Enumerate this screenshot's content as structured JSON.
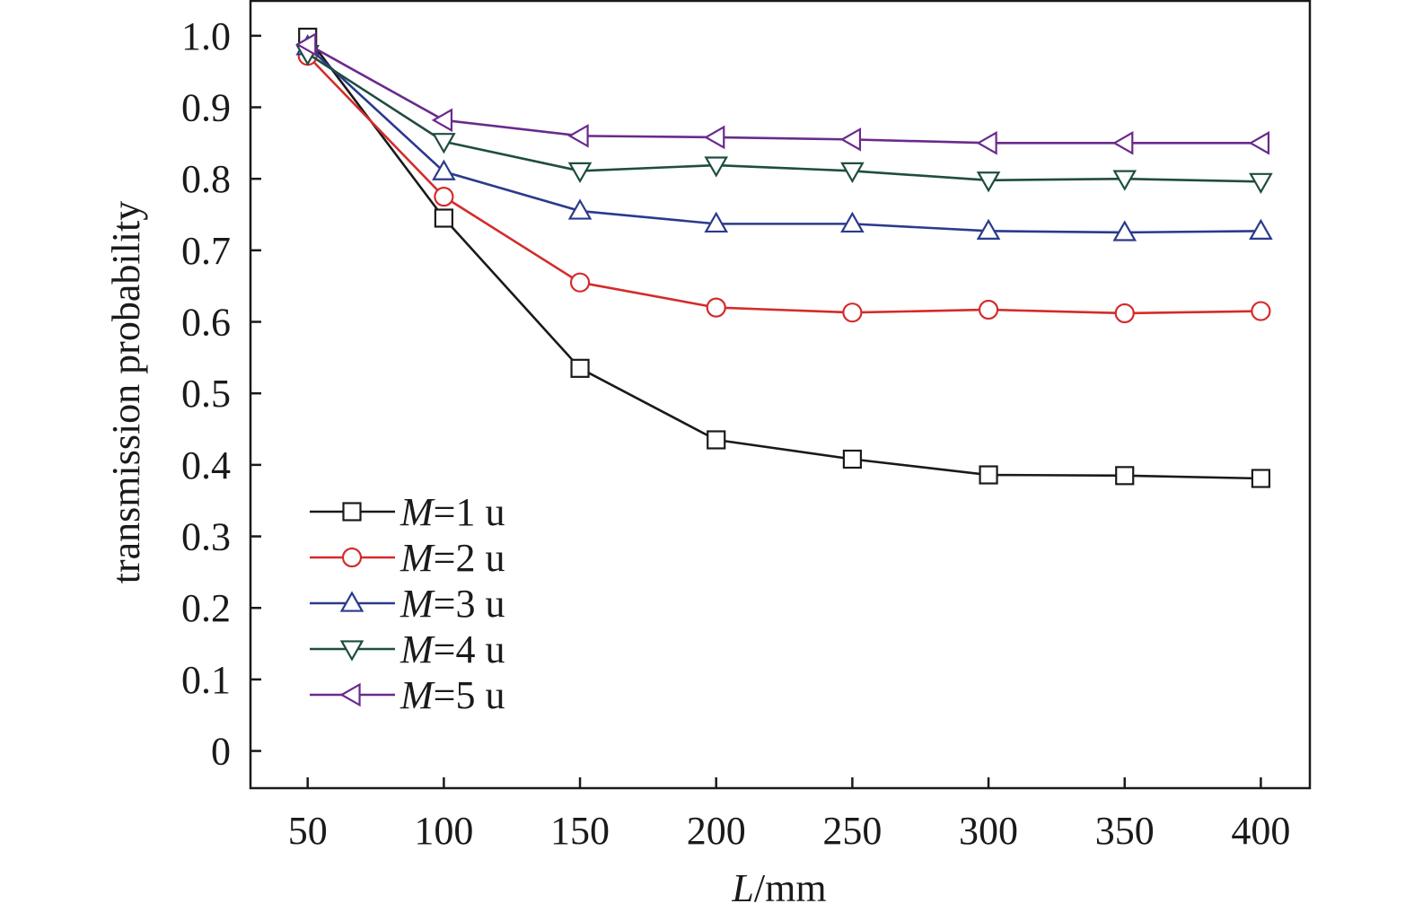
{
  "chart_data": {
    "type": "line",
    "title": "",
    "xlabel": {
      "var": "L",
      "unit": "/mm"
    },
    "ylabel": "transmission probability",
    "xlim": [
      29,
      418
    ],
    "ylim": [
      -0.052,
      1.05
    ],
    "x_ticks": [
      50,
      100,
      150,
      200,
      250,
      300,
      350,
      400
    ],
    "y_ticks": [
      0,
      0.1,
      0.2,
      0.3,
      0.4,
      0.5,
      0.6,
      0.7,
      0.8,
      0.9,
      1.0
    ],
    "y_tick_labels": [
      "0",
      "0.1",
      "0.2",
      "0.3",
      "0.4",
      "0.5",
      "0.6",
      "0.7",
      "0.8",
      "0.9",
      "1.0"
    ],
    "grid": false,
    "legend_placement": "lower-left",
    "x": [
      50,
      100,
      150,
      200,
      250,
      300,
      350,
      400
    ],
    "series": [
      {
        "name": "M=1 u",
        "var": "M",
        "rest": "=1 u",
        "color": "#1a1a1a",
        "marker": "square",
        "values": [
          0.998,
          0.745,
          0.535,
          0.435,
          0.408,
          0.386,
          0.385,
          0.381
        ]
      },
      {
        "name": "M=2 u",
        "var": "M",
        "rest": "=2 u",
        "color": "#d42b2b",
        "marker": "circle",
        "values": [
          0.972,
          0.775,
          0.655,
          0.62,
          0.613,
          0.617,
          0.612,
          0.615
        ]
      },
      {
        "name": "M=3 u",
        "var": "M",
        "rest": "=3 u",
        "color": "#2a3a8c",
        "marker": "triangle-up",
        "values": [
          0.985,
          0.81,
          0.755,
          0.737,
          0.737,
          0.727,
          0.725,
          0.727
        ]
      },
      {
        "name": "M=4 u",
        "var": "M",
        "rest": "=4 u",
        "color": "#1f4d40",
        "marker": "triangle-down",
        "values": [
          0.975,
          0.852,
          0.811,
          0.819,
          0.811,
          0.798,
          0.8,
          0.796
        ]
      },
      {
        "name": "M=5 u",
        "var": "M",
        "rest": "=5 u",
        "color": "#6a2a8c",
        "marker": "triangle-left",
        "values": [
          0.988,
          0.882,
          0.86,
          0.858,
          0.855,
          0.85,
          0.85,
          0.85
        ]
      }
    ]
  }
}
